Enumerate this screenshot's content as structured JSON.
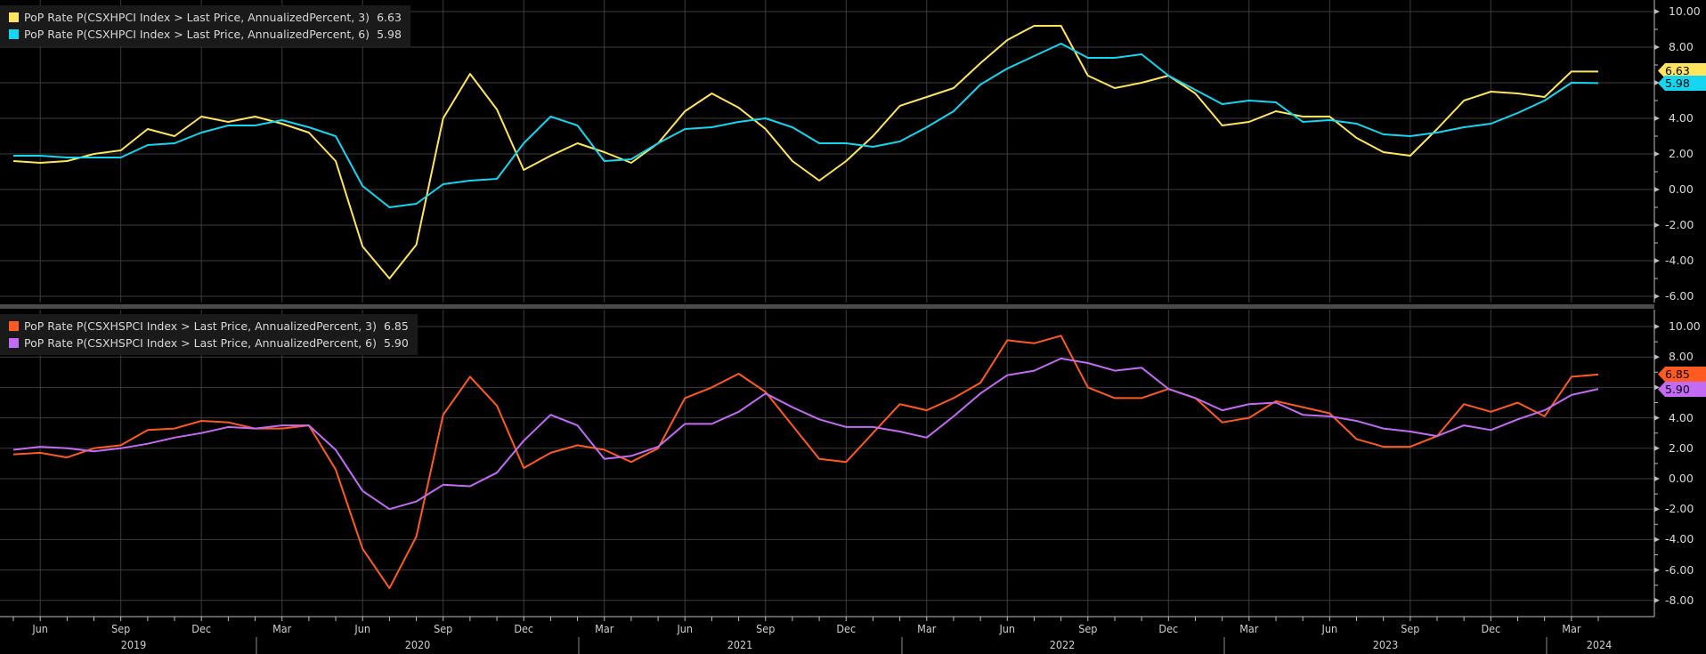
{
  "chart_data": [
    {
      "type": "line",
      "title": "",
      "xlabel": "",
      "ylabel": "",
      "ylim": [
        -6.5,
        10.5
      ],
      "y_ticks": [
        "10.00",
        "8.00",
        "6.00",
        "4.00",
        "2.00",
        "0.00",
        "-2.00",
        "-4.00",
        "-6.00"
      ],
      "grid": true,
      "legend_position": "top-left",
      "x_start": "2019-05",
      "series": [
        {
          "name": "PoP Rate P(CSXHPCI Index > Last Price, AnnualizedPercent, 3)",
          "last_value": "6.63",
          "color": "#ffe45c",
          "values": [
            1.6,
            1.5,
            1.6,
            2.0,
            2.2,
            3.4,
            3.0,
            4.1,
            3.8,
            4.1,
            3.7,
            3.2,
            1.6,
            -3.2,
            -5.0,
            -3.1,
            4.0,
            6.5,
            4.5,
            1.1,
            1.9,
            2.6,
            2.1,
            1.5,
            2.6,
            4.4,
            5.4,
            4.6,
            3.4,
            1.6,
            0.5,
            1.6,
            3.0,
            4.7,
            5.2,
            5.7,
            7.1,
            8.4,
            9.2,
            9.2,
            6.4,
            5.7,
            6.0,
            6.4,
            5.4,
            3.6,
            3.8,
            4.4,
            4.1,
            4.1,
            2.9,
            2.1,
            1.9,
            3.4,
            5.0,
            5.5,
            5.4,
            5.2,
            6.63,
            6.63
          ]
        },
        {
          "name": "PoP Rate P(CSXHPCI Index > Last Price, AnnualizedPercent, 6)",
          "last_value": "5.98",
          "color": "#14d6f0",
          "values": [
            1.9,
            1.9,
            1.8,
            1.8,
            1.8,
            2.5,
            2.6,
            3.2,
            3.6,
            3.6,
            3.9,
            3.5,
            3.0,
            0.2,
            -1.0,
            -0.8,
            0.3,
            0.5,
            0.6,
            2.6,
            4.1,
            3.6,
            1.6,
            1.7,
            2.6,
            3.4,
            3.5,
            3.8,
            4.0,
            3.5,
            2.6,
            2.6,
            2.4,
            2.7,
            3.5,
            4.4,
            5.9,
            6.8,
            7.5,
            8.2,
            7.4,
            7.4,
            7.6,
            6.4,
            5.6,
            4.8,
            5.0,
            4.9,
            3.8,
            3.9,
            3.7,
            3.1,
            3.0,
            3.2,
            3.5,
            3.7,
            4.3,
            5.0,
            6.0,
            5.98
          ]
        }
      ]
    },
    {
      "type": "line",
      "title": "",
      "xlabel": "",
      "ylabel": "",
      "ylim": [
        -8.5,
        10.5
      ],
      "y_ticks": [
        "10.00",
        "8.00",
        "6.00",
        "4.00",
        "2.00",
        "0.00",
        "-2.00",
        "-4.00",
        "-6.00",
        "-8.00"
      ],
      "grid": true,
      "legend_position": "top-left",
      "x_start": "2019-05",
      "series": [
        {
          "name": "PoP Rate P(CSXHSPCI Index > Last Price, AnnualizedPercent, 3)",
          "last_value": "6.85",
          "color": "#ff5a1f",
          "values": [
            1.6,
            1.7,
            1.4,
            2.0,
            2.2,
            3.2,
            3.3,
            3.8,
            3.7,
            3.3,
            3.3,
            3.5,
            0.6,
            -4.6,
            -7.2,
            -3.8,
            4.2,
            6.7,
            4.8,
            0.7,
            1.7,
            2.2,
            1.9,
            1.1,
            2.0,
            5.3,
            6.0,
            6.9,
            5.7,
            3.5,
            1.3,
            1.1,
            3.0,
            4.9,
            4.5,
            5.3,
            6.3,
            9.1,
            8.9,
            9.4,
            6.0,
            5.3,
            5.3,
            5.9,
            5.3,
            3.7,
            4.0,
            5.1,
            4.7,
            4.3,
            2.6,
            2.1,
            2.1,
            2.8,
            4.9,
            4.4,
            5.0,
            4.1,
            6.7,
            6.85
          ]
        },
        {
          "name": "PoP Rate P(CSXHSPCI Index > Last Price, AnnualizedPercent, 6)",
          "last_value": "5.90",
          "color": "#c36bf5",
          "values": [
            1.9,
            2.1,
            2.0,
            1.8,
            2.0,
            2.3,
            2.7,
            3.0,
            3.4,
            3.3,
            3.5,
            3.5,
            1.9,
            -0.8,
            -2.0,
            -1.5,
            -0.4,
            -0.5,
            0.4,
            2.5,
            4.2,
            3.5,
            1.3,
            1.5,
            2.1,
            3.6,
            3.6,
            4.4,
            5.6,
            4.7,
            3.9,
            3.4,
            3.4,
            3.1,
            2.7,
            4.1,
            5.6,
            6.8,
            7.1,
            7.9,
            7.6,
            7.1,
            7.3,
            5.9,
            5.3,
            4.5,
            4.9,
            5.0,
            4.2,
            4.1,
            3.8,
            3.3,
            3.1,
            2.8,
            3.5,
            3.2,
            3.9,
            4.5,
            5.5,
            5.9
          ]
        }
      ]
    }
  ],
  "panels": {
    "top": {
      "legend": [
        {
          "label": "PoP Rate P(CSXHPCI Index > Last Price, AnnualizedPercent, 3)",
          "value": "6.63",
          "color": "#ffe45c"
        },
        {
          "label": "PoP Rate P(CSXHPCI Index > Last Price, AnnualizedPercent, 6)",
          "value": "5.98",
          "color": "#14d6f0"
        }
      ],
      "y_ticks": [
        "10.00",
        "8.00",
        "6.00",
        "4.00",
        "2.00",
        "0.00",
        "-2.00",
        "-4.00",
        "-6.00"
      ]
    },
    "bottom": {
      "legend": [
        {
          "label": "PoP Rate P(CSXHSPCI Index > Last Price, AnnualizedPercent, 3)",
          "value": "6.85",
          "color": "#ff5a1f"
        },
        {
          "label": "PoP Rate P(CSXHSPCI Index > Last Price, AnnualizedPercent, 6)",
          "value": "5.90",
          "color": "#c36bf5"
        }
      ],
      "y_ticks": [
        "10.00",
        "8.00",
        "6.00",
        "4.00",
        "2.00",
        "0.00",
        "-2.00",
        "-4.00",
        "-6.00",
        "-8.00"
      ]
    }
  },
  "x_axis": {
    "months": [
      "Jun",
      "Sep",
      "Dec",
      "Mar",
      "Jun",
      "Sep",
      "Dec",
      "Mar",
      "Jun",
      "Sep",
      "Dec",
      "Mar",
      "Jun",
      "Sep",
      "Dec",
      "Mar",
      "Jun",
      "Sep",
      "Dec",
      "Mar"
    ],
    "years": [
      "2019",
      "2020",
      "2021",
      "2022",
      "2023",
      "2024"
    ]
  }
}
